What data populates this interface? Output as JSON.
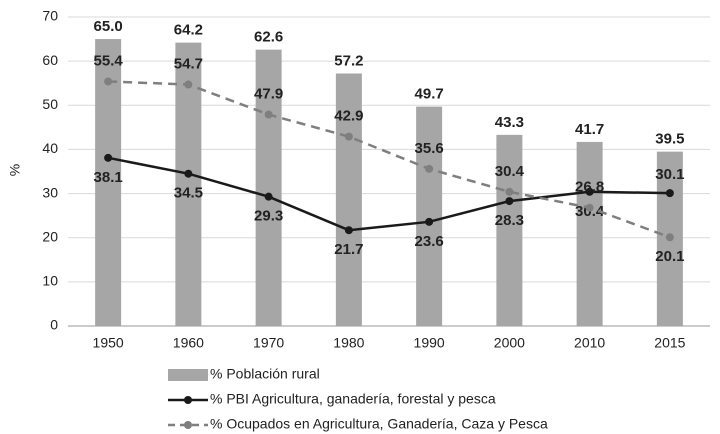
{
  "chart_data": {
    "type": "bar_line",
    "y_label": "%",
    "categories": [
      "1950",
      "1960",
      "1970",
      "1980",
      "1990",
      "2000",
      "2010",
      "2015"
    ],
    "series": [
      {
        "name": "% Población rural",
        "type": "bar",
        "color": "#a6a6a6",
        "values": [
          65.0,
          64.2,
          62.6,
          57.2,
          49.7,
          43.3,
          41.7,
          39.5
        ],
        "value_labels": [
          "65.0",
          "64.2",
          "62.6",
          "57.2",
          "49.7",
          "43.3",
          "41.7",
          "39.5"
        ]
      },
      {
        "name": "% PBI Agricultura, ganadería, forestal y pesca",
        "type": "line",
        "color": "#1a1a1a",
        "dash": false,
        "values": [
          38.1,
          34.5,
          29.3,
          21.7,
          23.6,
          28.3,
          30.4,
          30.1
        ]
      },
      {
        "name": "% Ocupados en Agricultura, Ganadería, Caza y Pesca",
        "type": "line",
        "color": "#7f7f7f",
        "dash": true,
        "values": [
          55.4,
          54.7,
          47.9,
          42.9,
          35.6,
          30.4,
          26.8,
          20.1
        ]
      }
    ],
    "ylim": [
      0,
      70
    ],
    "yticks": [
      0,
      10,
      20,
      30,
      40,
      50,
      60,
      70
    ],
    "grid": true,
    "legend": "bottom"
  }
}
